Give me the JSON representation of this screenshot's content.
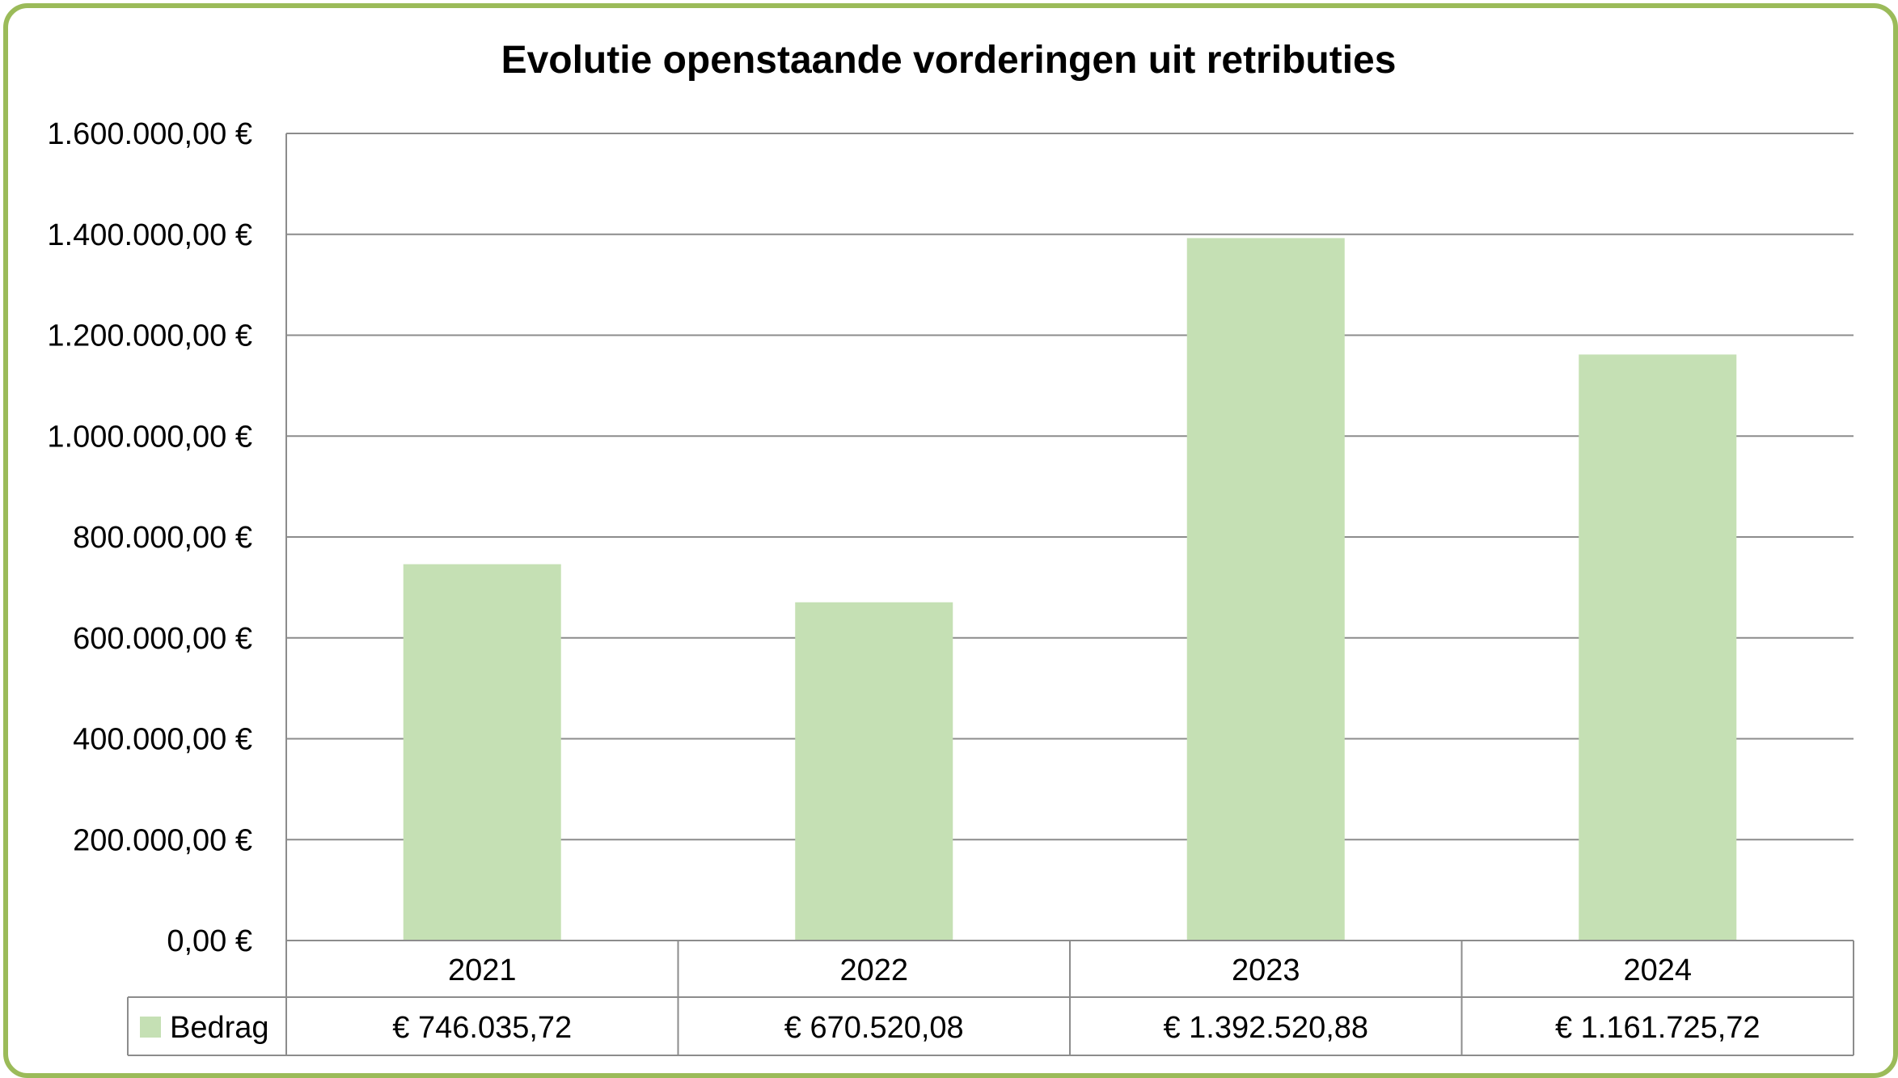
{
  "chart_data": {
    "type": "bar",
    "title": "Evolutie openstaande vorderingen uit retributies",
    "categories": [
      "2021",
      "2022",
      "2023",
      "2024"
    ],
    "series": [
      {
        "name": "Bedrag",
        "values": [
          746035.72,
          670520.08,
          1392520.88,
          1161725.72
        ],
        "labels": [
          "€ 746.035,72",
          "€ 670.520,08",
          "€ 1.392.520,88",
          "€ 1.161.725,72"
        ],
        "color": "#c5e0b4"
      }
    ],
    "ylim": [
      0,
      1600000
    ],
    "yticks": [
      0,
      200000,
      400000,
      600000,
      800000,
      1000000,
      1200000,
      1400000,
      1600000
    ],
    "ytick_labels": [
      "0,00 €",
      "200.000,00 €",
      "400.000,00 €",
      "600.000,00 €",
      "800.000,00 €",
      "1.000.000,00 €",
      "1.200.000,00 €",
      "1.400.000,00 €",
      "1.600.000,00 €"
    ],
    "grid": true,
    "legend": "data-table",
    "frame_color": "#9bbb59"
  }
}
